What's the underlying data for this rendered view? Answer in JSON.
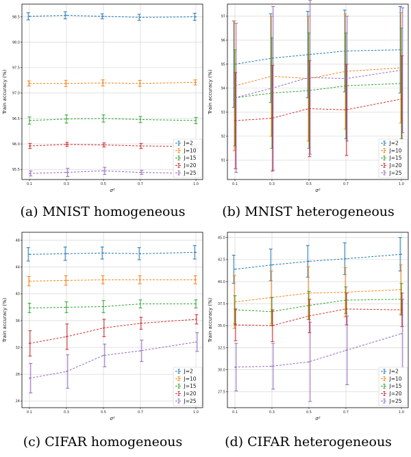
{
  "colors": {
    "J=2": "#1f77b4",
    "J=10": "#ff7f0e",
    "J=15": "#2ca02c",
    "J=20": "#d62728",
    "J=25": "#9467bd"
  },
  "chart_data": [
    {
      "id": "a",
      "caption": "(a) MNIST homogeneous",
      "type": "line",
      "grid": true,
      "legend_position": "bottom-right",
      "xlabel": "σ²",
      "ylabel": "Train accuracy (%)",
      "x": [
        0.1,
        0.3,
        0.5,
        0.7,
        1.0
      ],
      "xticks": [
        "0.1",
        "0.3",
        "0.5",
        "0.7",
        "1.0"
      ],
      "ylim": [
        95.3,
        98.75
      ],
      "yticks": [
        95.5,
        96.0,
        96.5,
        97.0,
        97.5,
        98.0,
        98.5
      ],
      "yticklabels": [
        "95.5",
        "96.0",
        "96.5",
        "97.0",
        "97.5",
        "98.0",
        "98.5"
      ],
      "series": [
        {
          "name": "J=2",
          "values": [
            98.51,
            98.53,
            98.51,
            98.49,
            98.5
          ],
          "err": [
            0.07,
            0.07,
            0.05,
            0.06,
            0.07
          ]
        },
        {
          "name": "J=10",
          "values": [
            97.19,
            97.19,
            97.2,
            97.19,
            97.21
          ],
          "err": [
            0.05,
            0.06,
            0.06,
            0.06,
            0.05
          ]
        },
        {
          "name": "J=15",
          "values": [
            96.46,
            96.49,
            96.5,
            96.48,
            96.46
          ],
          "err": [
            0.07,
            0.08,
            0.07,
            0.06,
            0.06
          ]
        },
        {
          "name": "J=20",
          "values": [
            95.96,
            95.99,
            95.98,
            95.96,
            95.95
          ],
          "err": [
            0.05,
            0.04,
            0.04,
            0.05,
            0.04
          ]
        },
        {
          "name": "J=25",
          "values": [
            95.42,
            95.44,
            95.47,
            95.44,
            95.42
          ],
          "err": [
            0.05,
            0.08,
            0.07,
            0.04,
            0.04
          ]
        }
      ]
    },
    {
      "id": "b",
      "caption": "(b) MNIST heterogeneous",
      "type": "line",
      "grid": true,
      "legend_position": "bottom-right",
      "xlabel": "σ²",
      "ylabel": "Train accuracy (%)",
      "x": [
        0.1,
        0.3,
        0.5,
        0.7,
        1.0
      ],
      "xticks": [
        "0.1",
        "0.3",
        "0.5",
        "0.7",
        "1.0"
      ],
      "ylim": [
        90.2,
        97.5
      ],
      "yticks": [
        91,
        92,
        93,
        94,
        95,
        96,
        97
      ],
      "yticklabels": [
        "91",
        "92",
        "93",
        "94",
        "95",
        "96",
        "97"
      ],
      "series": [
        {
          "name": "J=2",
          "values": [
            95.0,
            95.25,
            95.4,
            95.55,
            95.6
          ],
          "err": [
            1.8,
            1.85,
            1.8,
            1.7,
            1.8
          ]
        },
        {
          "name": "J=10",
          "values": [
            94.1,
            94.5,
            94.4,
            94.7,
            94.85
          ],
          "err": [
            2.7,
            2.5,
            2.6,
            2.4,
            2.3
          ]
        },
        {
          "name": "J=15",
          "values": [
            93.6,
            93.8,
            93.9,
            94.1,
            94.2
          ],
          "err": [
            2.0,
            2.3,
            2.4,
            2.2,
            2.3
          ]
        },
        {
          "name": "J=20",
          "values": [
            92.65,
            92.75,
            93.15,
            93.1,
            93.55
          ],
          "err": [
            2.0,
            2.2,
            2.0,
            1.9,
            1.8
          ]
        },
        {
          "name": "J=25",
          "values": [
            93.6,
            94.0,
            94.45,
            94.4,
            94.75
          ],
          "err": [
            3.1,
            3.4,
            3.2,
            2.6,
            2.6
          ]
        }
      ]
    },
    {
      "id": "c",
      "caption": "(c) CIFAR homogeneous",
      "type": "line",
      "grid": true,
      "legend_position": "bottom-right",
      "xlabel": "σ²",
      "ylabel": "Train accuracy (%)",
      "x": [
        0.1,
        0.3,
        0.5,
        0.7,
        1.0
      ],
      "xticks": [
        "0.1",
        "0.3",
        "0.5",
        "0.7",
        "1.0"
      ],
      "ylim": [
        23.0,
        49.2
      ],
      "yticks": [
        24,
        28,
        32,
        36,
        40,
        44,
        48
      ],
      "yticklabels": [
        "24",
        "28",
        "32",
        "36",
        "40",
        "44",
        "48"
      ],
      "series": [
        {
          "name": "J=2",
          "values": [
            45.9,
            46.0,
            46.1,
            46.0,
            46.2
          ],
          "err": [
            1.0,
            1.0,
            0.9,
            0.9,
            1.0
          ]
        },
        {
          "name": "J=10",
          "values": [
            41.9,
            42.0,
            42.1,
            42.1,
            42.1
          ],
          "err": [
            0.7,
            0.7,
            0.6,
            0.6,
            0.6
          ]
        },
        {
          "name": "J=15",
          "values": [
            37.9,
            38.0,
            38.1,
            38.5,
            38.5
          ],
          "err": [
            0.7,
            0.8,
            0.9,
            0.6,
            0.6
          ]
        },
        {
          "name": "J=20",
          "values": [
            32.6,
            33.6,
            34.9,
            35.6,
            36.2
          ],
          "err": [
            1.9,
            1.9,
            1.3,
            0.9,
            0.7
          ]
        },
        {
          "name": "J=25",
          "values": [
            27.4,
            28.4,
            30.8,
            31.5,
            32.8
          ],
          "err": [
            2.2,
            2.5,
            1.7,
            1.6,
            1.4
          ]
        }
      ]
    },
    {
      "id": "d",
      "caption": "(d) CIFAR heterogeneous",
      "type": "line",
      "grid": true,
      "legend_position": "bottom-right",
      "xlabel": "σ²",
      "ylabel": "Train accuracy (%)",
      "x": [
        0.1,
        0.3,
        0.5,
        0.7,
        1.0
      ],
      "xticks": [
        "0.1",
        "0.3",
        "0.5",
        "0.7",
        "1.0"
      ],
      "ylim": [
        25.7,
        45.6
      ],
      "yticks": [
        27.5,
        30.0,
        32.5,
        35.0,
        37.5,
        40.0,
        42.5,
        45.0
      ],
      "yticklabels": [
        "27.5",
        "30.0",
        "32.5",
        "35.0",
        "37.5",
        "40.0",
        "42.5",
        "45.0"
      ],
      "series": [
        {
          "name": "J=2",
          "values": [
            41.4,
            41.9,
            42.3,
            42.6,
            43.1
          ],
          "err": [
            1.6,
            1.8,
            1.8,
            1.8,
            1.9
          ]
        },
        {
          "name": "J=10",
          "values": [
            37.7,
            38.2,
            38.7,
            38.8,
            39.1
          ],
          "err": [
            3.0,
            3.0,
            3.0,
            2.8,
            2.8
          ]
        },
        {
          "name": "J=15",
          "values": [
            36.8,
            36.6,
            37.3,
            37.9,
            38.0
          ],
          "err": [
            1.6,
            1.6,
            1.6,
            1.5,
            1.8
          ]
        },
        {
          "name": "J=20",
          "values": [
            35.1,
            35.0,
            36.1,
            36.9,
            36.8
          ],
          "err": [
            1.8,
            1.8,
            1.9,
            1.8,
            1.9
          ]
        },
        {
          "name": "J=25",
          "values": [
            30.3,
            30.4,
            30.9,
            32.2,
            34.1
          ],
          "err": [
            2.7,
            2.6,
            4.5,
            3.9,
            3.9
          ]
        }
      ]
    }
  ]
}
